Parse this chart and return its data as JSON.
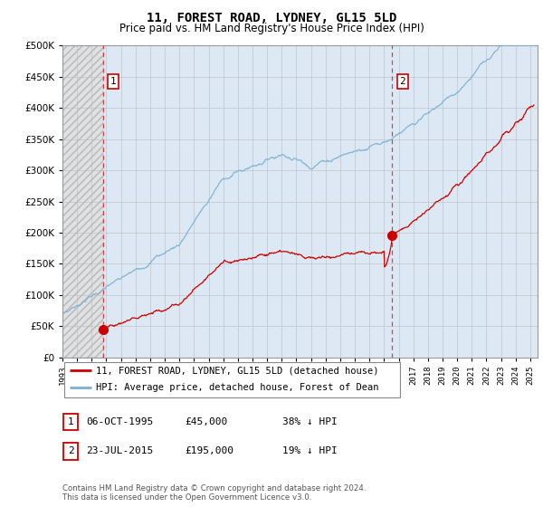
{
  "title": "11, FOREST ROAD, LYDNEY, GL15 5LD",
  "subtitle": "Price paid vs. HM Land Registry's House Price Index (HPI)",
  "yticks": [
    0,
    50000,
    100000,
    150000,
    200000,
    250000,
    300000,
    350000,
    400000,
    450000,
    500000
  ],
  "xlim_start": 1993.0,
  "xlim_end": 2025.5,
  "ylim_min": 0,
  "ylim_max": 500000,
  "hpi_color": "#7bafd4",
  "price_color": "#cc0000",
  "sale1_x": 1995.76,
  "sale1_y": 45000,
  "sale2_x": 2015.55,
  "sale2_y": 195000,
  "legend_entry1": "11, FOREST ROAD, LYDNEY, GL15 5LD (detached house)",
  "legend_entry2": "HPI: Average price, detached house, Forest of Dean",
  "table_row1": [
    "1",
    "06-OCT-1995",
    "£45,000",
    "38% ↓ HPI"
  ],
  "table_row2": [
    "2",
    "23-JUL-2015",
    "£195,000",
    "19% ↓ HPI"
  ],
  "footer": "Contains HM Land Registry data © Crown copyright and database right 2024.\nThis data is licensed under the Open Government Licence v3.0.",
  "bg_main": "#dce9f5",
  "bg_hatch": "#e8e8e8",
  "grid_color": "#bbbbbb"
}
